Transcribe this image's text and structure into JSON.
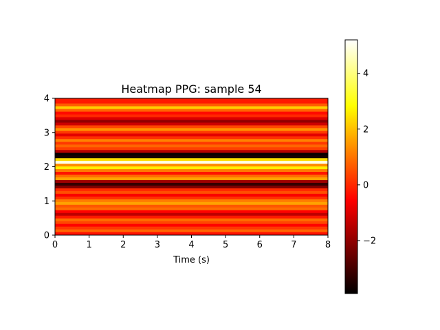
{
  "chart_data": {
    "type": "heatmap",
    "title": "Heatmap PPG: sample 54",
    "xlabel": "Time (s)",
    "ylabel": "",
    "xlim": [
      0,
      8
    ],
    "ylim": [
      0,
      4
    ],
    "x_ticks": [
      "0",
      "1",
      "2",
      "3",
      "4",
      "5",
      "6",
      "7",
      "8"
    ],
    "y_ticks": [
      "0",
      "1",
      "2",
      "3",
      "4"
    ],
    "colormap": "hot",
    "colorbar": {
      "range": [
        -3.9,
        5.2
      ],
      "ticks": [
        -2,
        0,
        2,
        4
      ],
      "tick_labels": [
        "−2",
        "0",
        "2",
        "4"
      ]
    },
    "grid": false,
    "row_bands": [
      {
        "y": [
          0.0,
          0.1
        ],
        "value": -0.3
      },
      {
        "y": [
          0.1,
          0.18
        ],
        "value": 0.8
      },
      {
        "y": [
          0.18,
          0.26
        ],
        "value": 0.2
      },
      {
        "y": [
          0.26,
          0.34
        ],
        "value": -0.5
      },
      {
        "y": [
          0.34,
          0.42
        ],
        "value": 0.4
      },
      {
        "y": [
          0.42,
          0.5
        ],
        "value": 0.9
      },
      {
        "y": [
          0.5,
          0.58
        ],
        "value": -0.2
      },
      {
        "y": [
          0.58,
          0.66
        ],
        "value": -1.4
      },
      {
        "y": [
          0.66,
          0.74
        ],
        "value": -0.5
      },
      {
        "y": [
          0.74,
          0.82
        ],
        "value": 0.9
      },
      {
        "y": [
          0.82,
          0.9
        ],
        "value": 0.6
      },
      {
        "y": [
          0.9,
          0.98
        ],
        "value": 1.6
      },
      {
        "y": [
          0.98,
          1.06
        ],
        "value": 1.1
      },
      {
        "y": [
          1.06,
          1.14
        ],
        "value": 0.1
      },
      {
        "y": [
          1.14,
          1.22
        ],
        "value": -0.6
      },
      {
        "y": [
          1.22,
          1.3
        ],
        "value": 0.5
      },
      {
        "y": [
          1.3,
          1.38
        ],
        "value": 0.0
      },
      {
        "y": [
          1.38,
          1.46
        ],
        "value": -2.2
      },
      {
        "y": [
          1.46,
          1.54
        ],
        "value": -3.2
      },
      {
        "y": [
          1.54,
          1.62
        ],
        "value": -1.8
      },
      {
        "y": [
          1.62,
          1.7
        ],
        "value": 1.6
      },
      {
        "y": [
          1.7,
          1.78
        ],
        "value": 0.9
      },
      {
        "y": [
          1.78,
          1.86
        ],
        "value": -0.3
      },
      {
        "y": [
          1.86,
          1.94
        ],
        "value": 1.1
      },
      {
        "y": [
          1.94,
          2.02
        ],
        "value": 2.6
      },
      {
        "y": [
          2.02,
          2.1
        ],
        "value": 1.3
      },
      {
        "y": [
          2.1,
          2.18
        ],
        "value": 5.0
      },
      {
        "y": [
          2.18,
          2.26
        ],
        "value": 2.4
      },
      {
        "y": [
          2.26,
          2.34
        ],
        "value": -3.6
      },
      {
        "y": [
          2.34,
          2.42
        ],
        "value": -3.8
      },
      {
        "y": [
          2.42,
          2.5
        ],
        "value": -1.5
      },
      {
        "y": [
          2.5,
          2.58
        ],
        "value": 0.3
      },
      {
        "y": [
          2.58,
          2.66
        ],
        "value": 0.8
      },
      {
        "y": [
          2.66,
          2.74
        ],
        "value": 0.2
      },
      {
        "y": [
          2.74,
          2.82
        ],
        "value": 1.2
      },
      {
        "y": [
          2.82,
          2.9
        ],
        "value": 0.1
      },
      {
        "y": [
          2.9,
          2.98
        ],
        "value": -0.9
      },
      {
        "y": [
          2.98,
          3.06
        ],
        "value": 0.2
      },
      {
        "y": [
          3.06,
          3.14
        ],
        "value": 1.4
      },
      {
        "y": [
          3.14,
          3.22
        ],
        "value": 0.4
      },
      {
        "y": [
          3.22,
          3.3
        ],
        "value": -1.2
      },
      {
        "y": [
          3.3,
          3.38
        ],
        "value": -2.0
      },
      {
        "y": [
          3.38,
          3.46
        ],
        "value": -1.0
      },
      {
        "y": [
          3.46,
          3.54
        ],
        "value": 0.0
      },
      {
        "y": [
          3.54,
          3.62
        ],
        "value": -0.4
      },
      {
        "y": [
          3.62,
          3.7
        ],
        "value": 0.8
      },
      {
        "y": [
          3.7,
          3.78
        ],
        "value": 2.2
      },
      {
        "y": [
          3.78,
          3.86
        ],
        "value": 0.7
      },
      {
        "y": [
          3.86,
          4.0
        ],
        "value": -0.2
      }
    ]
  }
}
